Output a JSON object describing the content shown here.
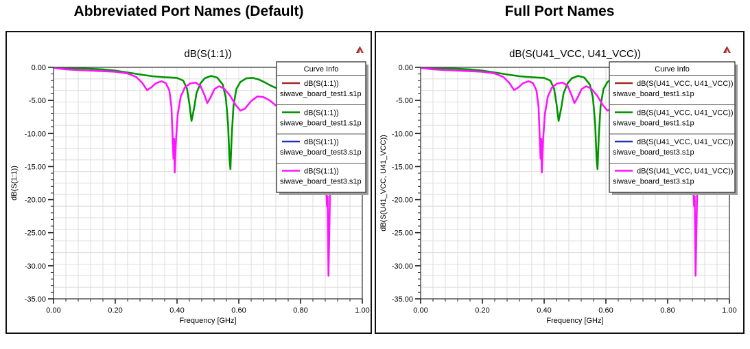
{
  "headings": {
    "left": "Abbreviated Port Names (Default)",
    "right": "Full Port Names"
  },
  "icon": {
    "name": "ansys-triangle-icon",
    "color": "#c22a2a"
  },
  "chart_data": {
    "type": "line",
    "grid": "on",
    "x_axis": {
      "label": "Frequency [GHz]",
      "min": 0,
      "max": 1,
      "major_tick_values": [
        0,
        0.2,
        0.4,
        0.6,
        0.8,
        1.0
      ],
      "major_tick_labels": [
        "0.00",
        "0.20",
        "0.40",
        "0.60",
        "0.80",
        "1.00"
      ],
      "minor_step": 0.04
    },
    "y_axis": {
      "min": -35,
      "max": 0,
      "major_tick_values": [
        0,
        -5,
        -10,
        -15,
        -20,
        -25,
        -30,
        -35
      ],
      "major_tick_labels": [
        "0.00",
        "-5.00",
        "-10.00",
        "-15.00",
        "-20.00",
        "-25.00",
        "-30.00",
        "-35.00"
      ],
      "minor_step": 1,
      "grid_divisions": 20
    },
    "charts": [
      {
        "heading": "Abbreviated Port Names (Default)",
        "title": "dB(S(1:1))",
        "ylabel": "dB(S(1:1))",
        "legend_title": "Curve Info",
        "legend_position": "top-right",
        "legend_entries": [
          {
            "color": "#a12b25",
            "label": "dB(S(1:1))",
            "file": "siwave_board_test1.s1p"
          },
          {
            "color": "#008a00",
            "label": "dB(S(1:1))",
            "file": "siwave_board_test1.s1p"
          },
          {
            "color": "#2430b4",
            "label": "dB(S(1:1))",
            "file": "siwave_board_test3.s1p"
          },
          {
            "color": "#ff14ff",
            "label": "dB(S(1:1))",
            "file": "siwave_board_test3.s1p"
          }
        ]
      },
      {
        "heading": "Full Port Names",
        "title": "dB(S(U41_VCC, U41_VCC))",
        "ylabel": "dB(S(U41_VCC, U41_VCC))",
        "legend_title": "Curve Info",
        "legend_position": "top-right",
        "legend_entries": [
          {
            "color": "#a12b25",
            "label": "dB(S(U41_VCC, U41_VCC))",
            "file": "siwave_board_test1.s1p"
          },
          {
            "color": "#008a00",
            "label": "dB(S(U41_VCC, U41_VCC))",
            "file": "siwave_board_test1.s1p"
          },
          {
            "color": "#2430b4",
            "label": "dB(S(U41_VCC, U41_VCC))",
            "file": "siwave_board_test3.s1p"
          },
          {
            "color": "#ff14ff",
            "label": "dB(S(U41_VCC, U41_VCC))",
            "file": "siwave_board_test3.s1p"
          }
        ]
      }
    ],
    "series": [
      {
        "name": "siwave_board_test1.s1p",
        "color": "#009400",
        "points": [
          [
            0.0,
            -0.05
          ],
          [
            0.04,
            -0.1
          ],
          [
            0.08,
            -0.15
          ],
          [
            0.12,
            -0.22
          ],
          [
            0.16,
            -0.32
          ],
          [
            0.2,
            -0.5
          ],
          [
            0.24,
            -0.78
          ],
          [
            0.28,
            -1.08
          ],
          [
            0.32,
            -1.35
          ],
          [
            0.36,
            -1.5
          ],
          [
            0.4,
            -1.6
          ],
          [
            0.42,
            -2.0
          ],
          [
            0.432,
            -3.2
          ],
          [
            0.44,
            -5.5
          ],
          [
            0.447,
            -8.1
          ],
          [
            0.455,
            -6.2
          ],
          [
            0.463,
            -3.9
          ],
          [
            0.476,
            -2.4
          ],
          [
            0.49,
            -1.65
          ],
          [
            0.51,
            -1.3
          ],
          [
            0.53,
            -1.55
          ],
          [
            0.548,
            -2.6
          ],
          [
            0.558,
            -4.6
          ],
          [
            0.565,
            -8.5
          ],
          [
            0.57,
            -14.0
          ],
          [
            0.573,
            -15.4
          ],
          [
            0.577,
            -10.5
          ],
          [
            0.583,
            -5.8
          ],
          [
            0.592,
            -3.3
          ],
          [
            0.605,
            -2.2
          ],
          [
            0.625,
            -1.65
          ],
          [
            0.645,
            -1.6
          ],
          [
            0.665,
            -1.85
          ],
          [
            0.685,
            -2.3
          ],
          [
            0.705,
            -2.8
          ],
          [
            0.72,
            -3.1
          ],
          [
            0.76,
            -3.7
          ],
          [
            0.82,
            -4.1
          ],
          [
            0.9,
            -4.4
          ],
          [
            1.0,
            -4.6
          ]
        ]
      },
      {
        "name": "siwave_board_test3.s1p",
        "color": "#ff14ff",
        "points": [
          [
            0.0,
            -0.1
          ],
          [
            0.04,
            -0.3
          ],
          [
            0.08,
            -0.42
          ],
          [
            0.12,
            -0.5
          ],
          [
            0.16,
            -0.58
          ],
          [
            0.2,
            -0.68
          ],
          [
            0.24,
            -0.92
          ],
          [
            0.268,
            -1.45
          ],
          [
            0.288,
            -2.4
          ],
          [
            0.303,
            -3.45
          ],
          [
            0.316,
            -3.05
          ],
          [
            0.332,
            -2.4
          ],
          [
            0.35,
            -2.1
          ],
          [
            0.364,
            -2.4
          ],
          [
            0.375,
            -3.5
          ],
          [
            0.382,
            -6.0
          ],
          [
            0.386,
            -11.0
          ],
          [
            0.3885,
            -13.8
          ],
          [
            0.3905,
            -10.8
          ],
          [
            0.3925,
            -15.9
          ],
          [
            0.396,
            -11.5
          ],
          [
            0.402,
            -7.2
          ],
          [
            0.412,
            -4.4
          ],
          [
            0.426,
            -3.0
          ],
          [
            0.442,
            -2.45
          ],
          [
            0.46,
            -2.3
          ],
          [
            0.476,
            -2.8
          ],
          [
            0.489,
            -4.2
          ],
          [
            0.498,
            -5.4
          ],
          [
            0.508,
            -4.6
          ],
          [
            0.521,
            -3.3
          ],
          [
            0.536,
            -2.85
          ],
          [
            0.552,
            -3.2
          ],
          [
            0.572,
            -4.3
          ],
          [
            0.59,
            -5.7
          ],
          [
            0.605,
            -6.55
          ],
          [
            0.62,
            -6.25
          ],
          [
            0.64,
            -5.1
          ],
          [
            0.66,
            -4.4
          ],
          [
            0.68,
            -4.5
          ],
          [
            0.7,
            -5.0
          ],
          [
            0.718,
            -5.7
          ],
          [
            0.75,
            -6.6
          ],
          [
            0.8,
            -7.6
          ],
          [
            0.85,
            -9.0
          ],
          [
            0.872,
            -11.0
          ],
          [
            0.881,
            -15.0
          ],
          [
            0.8855,
            -21.0
          ],
          [
            0.8875,
            -19.5
          ],
          [
            0.8905,
            -31.5
          ],
          [
            0.8935,
            -24.0
          ],
          [
            0.897,
            -14.0
          ],
          [
            0.905,
            -9.5
          ],
          [
            0.93,
            -7.0
          ],
          [
            0.965,
            -6.0
          ],
          [
            1.0,
            -5.6
          ]
        ]
      }
    ]
  }
}
